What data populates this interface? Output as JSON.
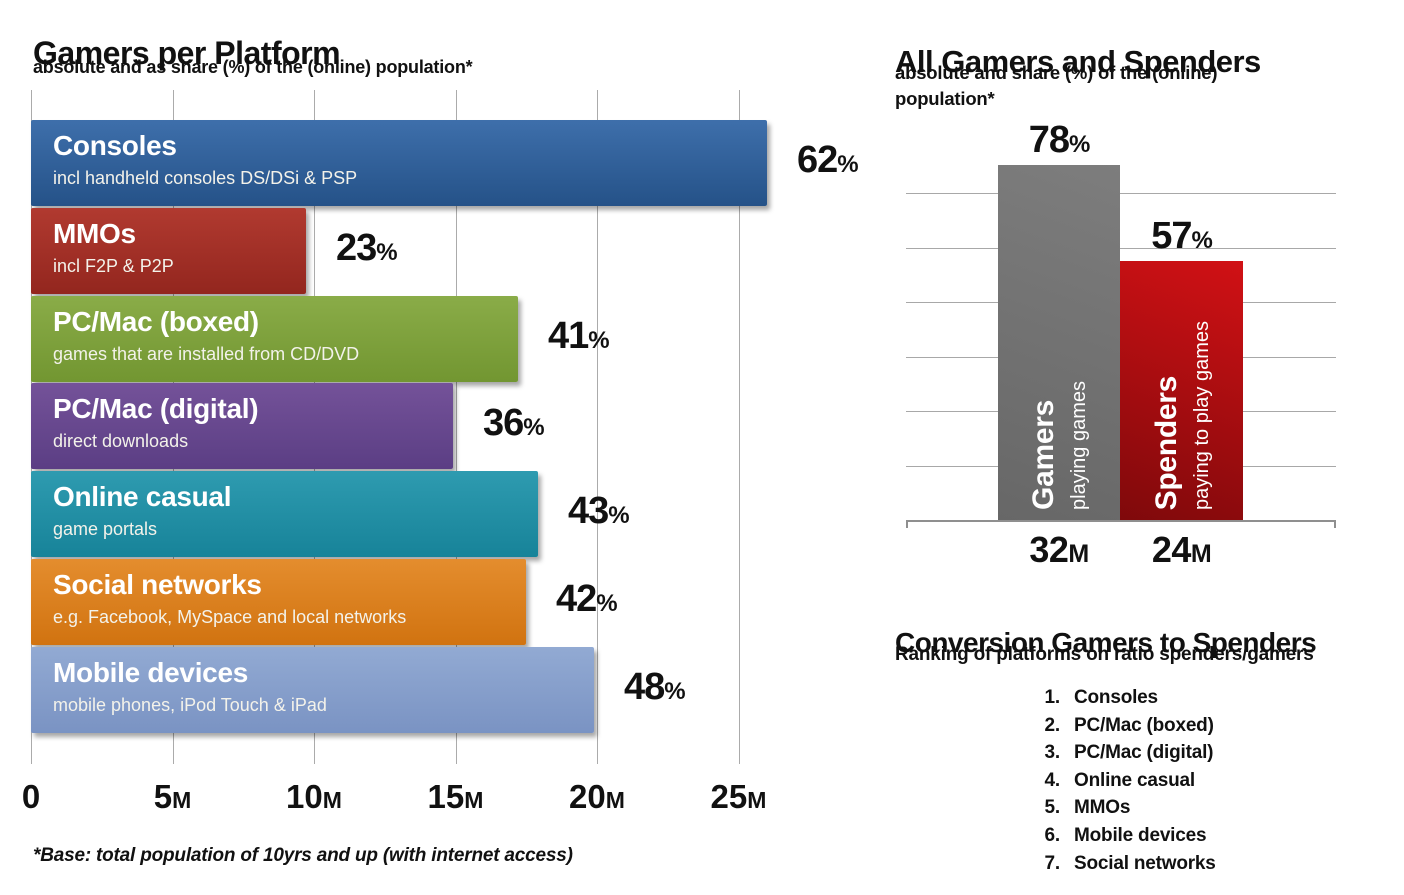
{
  "chart_data": [
    {
      "type": "bar",
      "orientation": "horizontal",
      "title": "Gamers per Platform",
      "subtitle": "absolute and as share (%) of the (online) population*",
      "footnote": "*Base: total population of 10yrs and up (with internet access)",
      "grid": "vertical",
      "xlim_millions": [
        0,
        26
      ],
      "x_ticks": [
        {
          "num": "0",
          "suffix": ""
        },
        {
          "num": "5",
          "suffix": "M"
        },
        {
          "num": "10",
          "suffix": "M"
        },
        {
          "num": "15",
          "suffix": "M"
        },
        {
          "num": "20",
          "suffix": "M"
        },
        {
          "num": "25",
          "suffix": "M"
        }
      ],
      "bars": [
        {
          "label": "Consoles",
          "sublabel": "incl handheld consoles  DS/DSi & PSP",
          "pct": 62,
          "value_m": 26.0,
          "color_top": "#3e6fab",
          "color_bottom": "#255288"
        },
        {
          "label": "MMOs",
          "sublabel": "incl F2P & P2P",
          "pct": 23,
          "value_m": 9.7,
          "color_top": "#b13a30",
          "color_bottom": "#93261e"
        },
        {
          "label": "PC/Mac (boxed)",
          "sublabel": "games that are installed from CD/DVD",
          "pct": 41,
          "value_m": 17.2,
          "color_top": "#8aac48",
          "color_bottom": "#729631"
        },
        {
          "label": "PC/Mac (digital)",
          "sublabel": "direct downloads",
          "pct": 36,
          "value_m": 14.9,
          "color_top": "#745299",
          "color_bottom": "#5b3e84"
        },
        {
          "label": "Online casual",
          "sublabel": "game portals",
          "pct": 43,
          "value_m": 17.9,
          "color_top": "#2e9bb0",
          "color_bottom": "#178399"
        },
        {
          "label": "Social networks",
          "sublabel": "e.g. Facebook, MySpace and local networks",
          "pct": 42,
          "value_m": 17.5,
          "color_top": "#e48d2e",
          "color_bottom": "#d17310"
        },
        {
          "label": "Mobile devices",
          "sublabel": "mobile phones, iPod Touch & iPad",
          "pct": 48,
          "value_m": 19.9,
          "color_top": "#92aad3",
          "color_bottom": "#7a93c3"
        }
      ]
    },
    {
      "type": "bar",
      "orientation": "vertical",
      "title": "All Gamers and Spenders",
      "subtitle": "absolute and share (%) of the (online) population*",
      "grid": "horizontal",
      "bars": [
        {
          "name": "Gamers",
          "desc": "playing games",
          "pct": 78,
          "millions": 32,
          "m_suffix": "M",
          "color_bright": "#7d7d7d",
          "color_dark": "#676767"
        },
        {
          "name": "Spenders",
          "desc": "paying to play games",
          "pct": 57,
          "millions": 24,
          "m_suffix": "M",
          "color_bright": "#d11115",
          "color_dark": "#7f090b"
        }
      ]
    },
    {
      "type": "table",
      "title": "Conversion Gamers to Spenders",
      "subtitle": "Ranking of platforms on ratio spenders/gamers",
      "rank_items": [
        "Consoles",
        "PC/Mac (boxed)",
        "PC/Mac (digital)",
        "Online casual",
        "MMOs",
        "Mobile devices",
        "Social networks"
      ]
    }
  ],
  "percent_sign": "%"
}
